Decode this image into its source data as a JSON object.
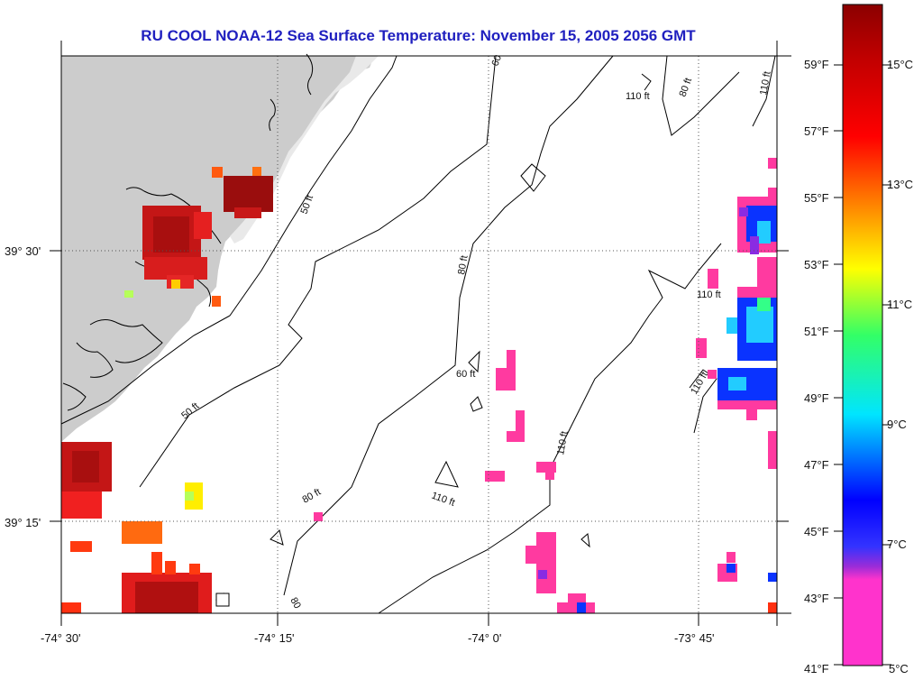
{
  "title": "RU COOL  NOAA-12  Sea Surface Temperature:  November 15, 2005 2056 GMT",
  "axes": {
    "x_ticks": [
      "-74° 30'",
      "-74° 15'",
      "-74° 0'",
      "-73° 45'"
    ],
    "y_ticks": [
      "39° 30'",
      "39° 15'"
    ]
  },
  "contour_labels": [
    "60",
    "110 ft",
    "80 ft",
    "110 ft",
    "50 ft",
    "80 ft",
    "110 ft",
    "60 ft",
    "110 ft",
    "110 ft",
    "50 ft",
    "80 ft",
    "110 ft",
    "80"
  ],
  "colorbar": {
    "fahrenheit": [
      "59°F",
      "57°F",
      "55°F",
      "53°F",
      "51°F",
      "49°F",
      "47°F",
      "45°F",
      "43°F",
      "41°F"
    ],
    "celsius": [
      "15°C",
      "13°C",
      "11°C",
      "9°C",
      "7°C",
      "5°C"
    ],
    "colors": [
      "#ff33cc",
      "#8a2be2",
      "#0000ff",
      "#00e5ff",
      "#33ff66",
      "#ffff00",
      "#ff9900",
      "#ff0000",
      "#8b0000"
    ]
  },
  "colors": {
    "land": "#cccccc",
    "title": "#1f1fbf",
    "dark_red": "#b01010",
    "red": "#d81818",
    "orange": "#ff4400",
    "magenta": "#ff3aa0",
    "blue": "#0a33ff",
    "cyan": "#22ccff"
  }
}
